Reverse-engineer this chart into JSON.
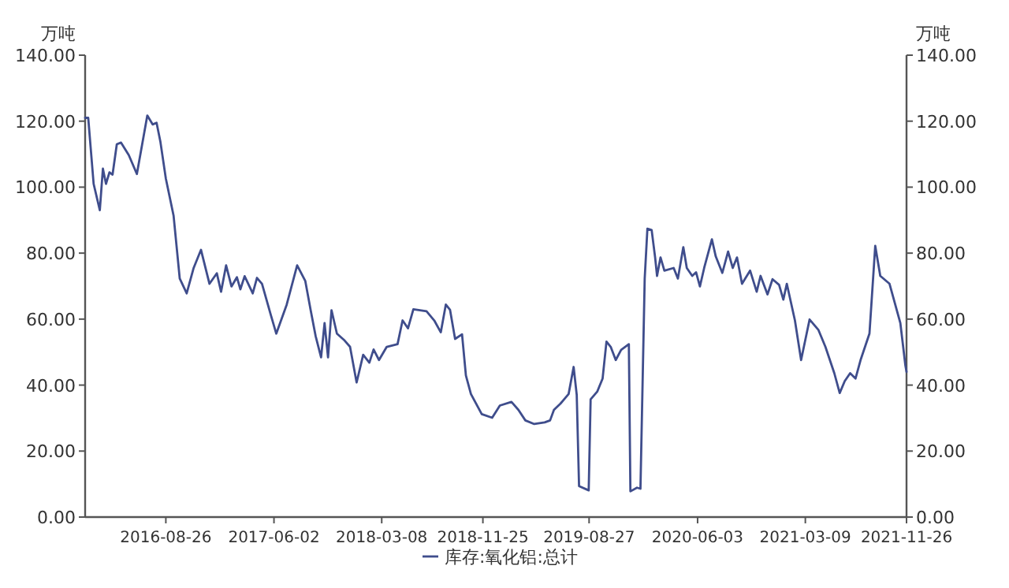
{
  "chart_data": {
    "type": "line",
    "ylabel": "万吨",
    "y2label": "万吨",
    "legend": "bottom",
    "xlim": [
      "2016-01-30",
      "2021-11-26"
    ],
    "xticks": [
      "2016-08-26",
      "2017-06-02",
      "2018-03-08",
      "2018-11-25",
      "2019-08-27",
      "2020-06-03",
      "2021-03-09",
      "2021-11-26"
    ],
    "ylim": [
      0,
      140
    ],
    "yticks": [
      {
        "value": 0,
        "label": "0.00"
      },
      {
        "value": 20,
        "label": "20.00"
      },
      {
        "value": 40,
        "label": "40.00"
      },
      {
        "value": 60,
        "label": "60.00"
      },
      {
        "value": 80,
        "label": "80.00"
      },
      {
        "value": 100,
        "label": "100.00"
      },
      {
        "value": 120,
        "label": "120.00"
      },
      {
        "value": 140,
        "label": "140.00"
      }
    ],
    "y2lim": [
      0,
      140
    ],
    "y2ticks": [
      {
        "value": 0,
        "label": "0.00"
      },
      {
        "value": 20,
        "label": "20.00"
      },
      {
        "value": 40,
        "label": "40.00"
      },
      {
        "value": 60,
        "label": "60.00"
      },
      {
        "value": 80,
        "label": "80.00"
      },
      {
        "value": 100,
        "label": "100.00"
      },
      {
        "value": 120,
        "label": "120.00"
      },
      {
        "value": 140,
        "label": "140.00"
      }
    ],
    "x": [
      "2016-01-30",
      "2016-02-07",
      "2016-02-21",
      "2016-03-08",
      "2016-03-16",
      "2016-03-24",
      "2016-04-02",
      "2016-04-10",
      "2016-04-21",
      "2016-05-02",
      "2016-05-22",
      "2016-06-12",
      "2016-07-09",
      "2016-07-23",
      "2016-08-02",
      "2016-08-12",
      "2016-08-26",
      "2016-09-15",
      "2016-10-01",
      "2016-10-19",
      "2016-11-06",
      "2016-11-25",
      "2016-12-17",
      "2017-01-05",
      "2017-01-16",
      "2017-01-29",
      "2017-02-12",
      "2017-02-26",
      "2017-03-07",
      "2017-03-18",
      "2017-04-08",
      "2017-04-19",
      "2017-05-02",
      "2017-05-25",
      "2017-06-08",
      "2017-07-05",
      "2017-08-01",
      "2017-08-22",
      "2017-09-05",
      "2017-09-18",
      "2017-10-02",
      "2017-10-11",
      "2017-10-20",
      "2017-10-29",
      "2017-11-12",
      "2017-12-02",
      "2017-12-16",
      "2018-01-02",
      "2018-01-19",
      "2018-02-04",
      "2018-02-15",
      "2018-03-01",
      "2018-03-21",
      "2018-04-18",
      "2018-05-01",
      "2018-05-15",
      "2018-05-29",
      "2018-07-02",
      "2018-07-22",
      "2018-08-08",
      "2018-08-21",
      "2018-09-01",
      "2018-09-14",
      "2018-10-02",
      "2018-10-12",
      "2018-10-25",
      "2018-11-22",
      "2018-12-19",
      "2019-01-08",
      "2019-02-07",
      "2019-02-25",
      "2019-03-15",
      "2019-04-07",
      "2019-05-04",
      "2019-05-18",
      "2019-05-28",
      "2019-06-14",
      "2019-07-05",
      "2019-07-18",
      "2019-07-26",
      "2019-08-01",
      "2019-08-26",
      "2019-08-31",
      "2019-09-17",
      "2019-10-01",
      "2019-10-11",
      "2019-10-22",
      "2019-11-04",
      "2019-11-18",
      "2019-12-08",
      "2019-12-12",
      "2019-12-29",
      "2020-01-07",
      "2020-01-18",
      "2020-01-25",
      "2020-02-05",
      "2020-02-14",
      "2020-02-19",
      "2020-02-28",
      "2020-03-09",
      "2020-04-02",
      "2020-04-13",
      "2020-04-27",
      "2020-05-06",
      "2020-05-20",
      "2020-05-30",
      "2020-06-09",
      "2020-06-20",
      "2020-07-10",
      "2020-07-20",
      "2020-08-06",
      "2020-08-21",
      "2020-09-02",
      "2020-09-13",
      "2020-09-26",
      "2020-10-17",
      "2020-11-03",
      "2020-11-13",
      "2020-12-01",
      "2020-12-14",
      "2020-12-31",
      "2021-01-11",
      "2021-01-20",
      "2021-02-10",
      "2021-02-26",
      "2021-03-20",
      "2021-04-12",
      "2021-04-30",
      "2021-05-23",
      "2021-06-06",
      "2021-06-19",
      "2021-07-03",
      "2021-07-17",
      "2021-07-30",
      "2021-08-22",
      "2021-09-06",
      "2021-09-19",
      "2021-10-13",
      "2021-11-10",
      "2021-11-23",
      "2021-11-26"
    ],
    "series": [
      {
        "name": "库存:氧化铝:总计",
        "color": "#3f4d8c",
        "values": [
          121,
          121,
          101,
          93,
          105.6,
          101,
          104.5,
          103.8,
          113,
          113.5,
          109.7,
          104,
          121.7,
          119,
          119.5,
          113.7,
          102.6,
          91.4,
          72.3,
          67.8,
          75.5,
          81,
          70.7,
          73.9,
          68.3,
          76.3,
          69.9,
          72.7,
          69,
          73,
          67.8,
          72.5,
          70.7,
          61.2,
          55.6,
          64.4,
          76.3,
          71.6,
          62.7,
          54.8,
          48.4,
          58.8,
          48.4,
          62.7,
          55.6,
          53.5,
          51.6,
          40.8,
          49.2,
          46.8,
          50.8,
          47.6,
          51.6,
          52.4,
          59.6,
          57.2,
          63,
          62.4,
          59.6,
          56,
          64.4,
          62.8,
          54,
          55.4,
          42.9,
          37.3,
          31.2,
          30.1,
          33.8,
          34.9,
          32.5,
          29.3,
          28.2,
          28.7,
          29.3,
          32.5,
          34.4,
          37.3,
          45.5,
          37,
          9.4,
          8.1,
          35.7,
          38,
          42,
          53.2,
          51.6,
          47.6,
          50.7,
          52.4,
          7.8,
          8.9,
          8.6,
          72.3,
          87.4,
          87,
          78.7,
          73.1,
          78.7,
          74.7,
          75.5,
          72.3,
          81.8,
          75.5,
          73.1,
          74.2,
          69.9,
          75.5,
          84.2,
          79,
          74,
          80.5,
          75.5,
          78.7,
          70.7,
          74.7,
          68.3,
          73.1,
          67.5,
          72.1,
          70.4,
          65.9,
          70.7,
          59.6,
          47.6,
          59.9,
          56.7,
          51.6,
          43.6,
          37.6,
          41.2,
          43.6,
          42,
          47.6,
          55.6,
          82.2,
          73.1,
          70.7,
          58.8,
          46,
          44
        ]
      }
    ]
  }
}
